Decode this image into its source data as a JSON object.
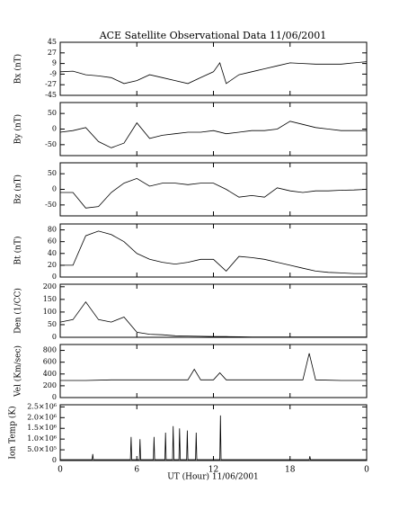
{
  "chart_data": [
    {
      "type": "line",
      "title": "ACE Satellite Observational Data   11/06/2001",
      "ylabel": "Bx (nT)",
      "color": "#000000",
      "xlim": [
        0,
        24
      ],
      "ylim": [
        -45,
        45
      ],
      "yticks": [
        -45,
        -27,
        -9,
        9,
        27,
        45
      ],
      "x": [
        0,
        1,
        2,
        3,
        4,
        5,
        6,
        7,
        8,
        9,
        10,
        11,
        12,
        12.5,
        13,
        14,
        15,
        16,
        17,
        18,
        19,
        20,
        21,
        22,
        23,
        24
      ],
      "values": [
        -5,
        -4,
        -10,
        -12,
        -15,
        -25,
        -20,
        -10,
        -15,
        -20,
        -25,
        -15,
        -5,
        10,
        -25,
        -10,
        -5,
        0,
        5,
        10,
        9,
        8,
        8,
        8,
        10,
        12
      ]
    },
    {
      "type": "line",
      "ylabel": "By (nT)",
      "color": "#000000",
      "xlim": [
        0,
        24
      ],
      "ylim": [
        -85,
        85
      ],
      "yticks": [
        -50,
        0,
        50
      ],
      "x": [
        0,
        1,
        2,
        3,
        4,
        5,
        6,
        7,
        8,
        9,
        10,
        11,
        12,
        13,
        14,
        15,
        16,
        17,
        18,
        19,
        20,
        21,
        22,
        23,
        24
      ],
      "values": [
        -10,
        -5,
        5,
        -40,
        -60,
        -45,
        20,
        -30,
        -20,
        -15,
        -10,
        -10,
        -5,
        -15,
        -10,
        -5,
        -5,
        0,
        25,
        15,
        5,
        0,
        -5,
        -5,
        -5
      ]
    },
    {
      "type": "line",
      "ylabel": "Bz (nT)",
      "color": "#000000",
      "xlim": [
        0,
        24
      ],
      "ylim": [
        -85,
        85
      ],
      "yticks": [
        -50,
        0,
        50
      ],
      "x": [
        0,
        1,
        2,
        3,
        4,
        5,
        6,
        7,
        8,
        9,
        10,
        11,
        12,
        13,
        14,
        15,
        16,
        17,
        18,
        19,
        20,
        21,
        22,
        23,
        24
      ],
      "values": [
        -10,
        -10,
        -60,
        -55,
        -10,
        20,
        35,
        10,
        20,
        20,
        15,
        20,
        20,
        0,
        -25,
        -20,
        -25,
        5,
        -5,
        -10,
        -5,
        -5,
        -3,
        -2,
        0
      ]
    },
    {
      "type": "line",
      "ylabel": "Bt (nT)",
      "color": "#000000",
      "xlim": [
        0,
        24
      ],
      "ylim": [
        0,
        90
      ],
      "yticks": [
        0,
        20,
        40,
        60,
        80
      ],
      "x": [
        0,
        1,
        2,
        3,
        4,
        5,
        6,
        7,
        8,
        9,
        10,
        11,
        12,
        13,
        14,
        15,
        16,
        17,
        18,
        19,
        20,
        21,
        22,
        23,
        24
      ],
      "values": [
        20,
        20,
        70,
        78,
        72,
        60,
        40,
        30,
        25,
        22,
        25,
        30,
        30,
        10,
        35,
        33,
        30,
        25,
        20,
        15,
        10,
        8,
        7,
        6,
        6
      ]
    },
    {
      "type": "line",
      "ylabel": "Den (1/CC)",
      "color": "#000000",
      "xlim": [
        0,
        24
      ],
      "ylim": [
        0,
        210
      ],
      "yticks": [
        0,
        50,
        100,
        150,
        200
      ],
      "x": [
        0,
        1,
        2,
        3,
        4,
        5,
        6,
        7,
        8,
        9,
        10,
        11,
        12,
        13,
        14,
        15,
        16,
        17,
        18,
        19,
        20,
        21,
        22,
        23,
        24
      ],
      "values": [
        60,
        70,
        140,
        70,
        60,
        80,
        20,
        12,
        10,
        6,
        5,
        4,
        3,
        3,
        2,
        1,
        1,
        1,
        1,
        1,
        1,
        1,
        1,
        1,
        1
      ]
    },
    {
      "type": "line",
      "ylabel": "Vel (Km/sec)",
      "color": "#000000",
      "xlim": [
        0,
        24
      ],
      "ylim": [
        0,
        900
      ],
      "yticks": [
        0,
        200,
        400,
        600,
        800
      ],
      "x": [
        0,
        2,
        4,
        6,
        8,
        10,
        10.5,
        11,
        12,
        12.5,
        13,
        16,
        19,
        19.5,
        20,
        22,
        24
      ],
      "values": [
        290,
        290,
        300,
        300,
        300,
        300,
        480,
        300,
        300,
        420,
        300,
        300,
        300,
        750,
        300,
        290,
        290
      ]
    },
    {
      "type": "line",
      "ylabel": "Ion Temp (K)",
      "xlabel": "UT (Hour)  11/06/2001",
      "color": "#000000",
      "xlim": [
        0,
        24
      ],
      "ylim": [
        0,
        2600000
      ],
      "yticks": [
        0,
        {
          "value": 500000,
          "label": "5.0×10⁵"
        },
        {
          "value": 1000000,
          "label": "1.0×10⁶"
        },
        {
          "value": 1500000,
          "label": "1.5×10⁶"
        },
        {
          "value": 2000000,
          "label": "2.0×10⁶"
        },
        {
          "value": 2500000,
          "label": "2.5×10⁶"
        }
      ],
      "xticks": [
        0,
        6,
        12,
        18,
        {
          "value": 24,
          "label": "0"
        }
      ],
      "x": [
        0,
        2.5,
        2.55,
        2.6,
        5.5,
        5.55,
        5.6,
        6.2,
        6.25,
        6.3,
        7.3,
        7.35,
        7.4,
        8.2,
        8.25,
        8.3,
        8.8,
        8.85,
        8.9,
        9.3,
        9.35,
        9.4,
        9.9,
        9.95,
        10,
        10.6,
        10.65,
        10.7,
        12.5,
        12.55,
        12.6,
        19.5,
        19.55,
        19.6,
        24
      ],
      "values": [
        40000,
        40000,
        300000,
        40000,
        40000,
        1100000,
        40000,
        40000,
        1000000,
        40000,
        40000,
        1100000,
        40000,
        40000,
        1300000,
        40000,
        40000,
        1600000,
        40000,
        40000,
        1500000,
        40000,
        40000,
        1400000,
        40000,
        40000,
        1300000,
        40000,
        40000,
        2100000,
        40000,
        40000,
        200000,
        40000,
        40000
      ]
    }
  ]
}
